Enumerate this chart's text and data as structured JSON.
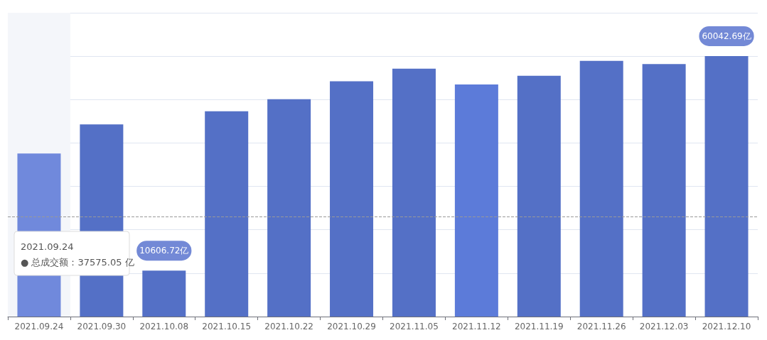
{
  "chart_data": {
    "type": "bar",
    "categories": [
      "2021.09.24",
      "2021.09.30",
      "2021.10.08",
      "2021.10.15",
      "2021.10.22",
      "2021.10.29",
      "2021.11.05",
      "2021.11.12",
      "2021.11.19",
      "2021.11.26",
      "2021.12.03",
      "2021.12.10"
    ],
    "values": [
      37575.05,
      44300,
      10606.72,
      47300,
      50100,
      54200,
      57100,
      53500,
      55500,
      58900,
      58200,
      60042.69
    ],
    "colors": [
      "#7089dc",
      "#5470c6",
      "#5470c6",
      "#5470c6",
      "#5470c6",
      "#5470c6",
      "#5470c6",
      "#5c7bd9",
      "#5470c6",
      "#5470c6",
      "#5470c6",
      "#5470c6"
    ],
    "value_labels": [
      null,
      null,
      "10606.72亿",
      null,
      null,
      null,
      null,
      null,
      null,
      null,
      null,
      "60042.69亿"
    ],
    "ylim": [
      0,
      70000
    ],
    "yticks": [
      {
        "value": 0,
        "label": null
      },
      {
        "value": 10000,
        "label": null
      },
      {
        "value": 20000,
        "label": null
      },
      {
        "value": 30000,
        "label": null
      },
      {
        "value": 40000,
        "label": null
      },
      {
        "value": 50000,
        "label": null
      },
      {
        "value": 60000,
        "label": null
      },
      {
        "value": 70000,
        "label": null
      }
    ],
    "grid": "y",
    "ref_lines": [
      {
        "axis": "y",
        "value": 22950,
        "label": null,
        "color": "#999999",
        "line_style": "dashed"
      }
    ],
    "bands": [
      {
        "axis": "x",
        "from": "2021.09.24",
        "to": "2021.09.24",
        "label": null,
        "color": "#f4f6fa"
      }
    ],
    "annotations": [
      "2021.09.24\n● 总成交额：37575.05 亿"
    ]
  }
}
